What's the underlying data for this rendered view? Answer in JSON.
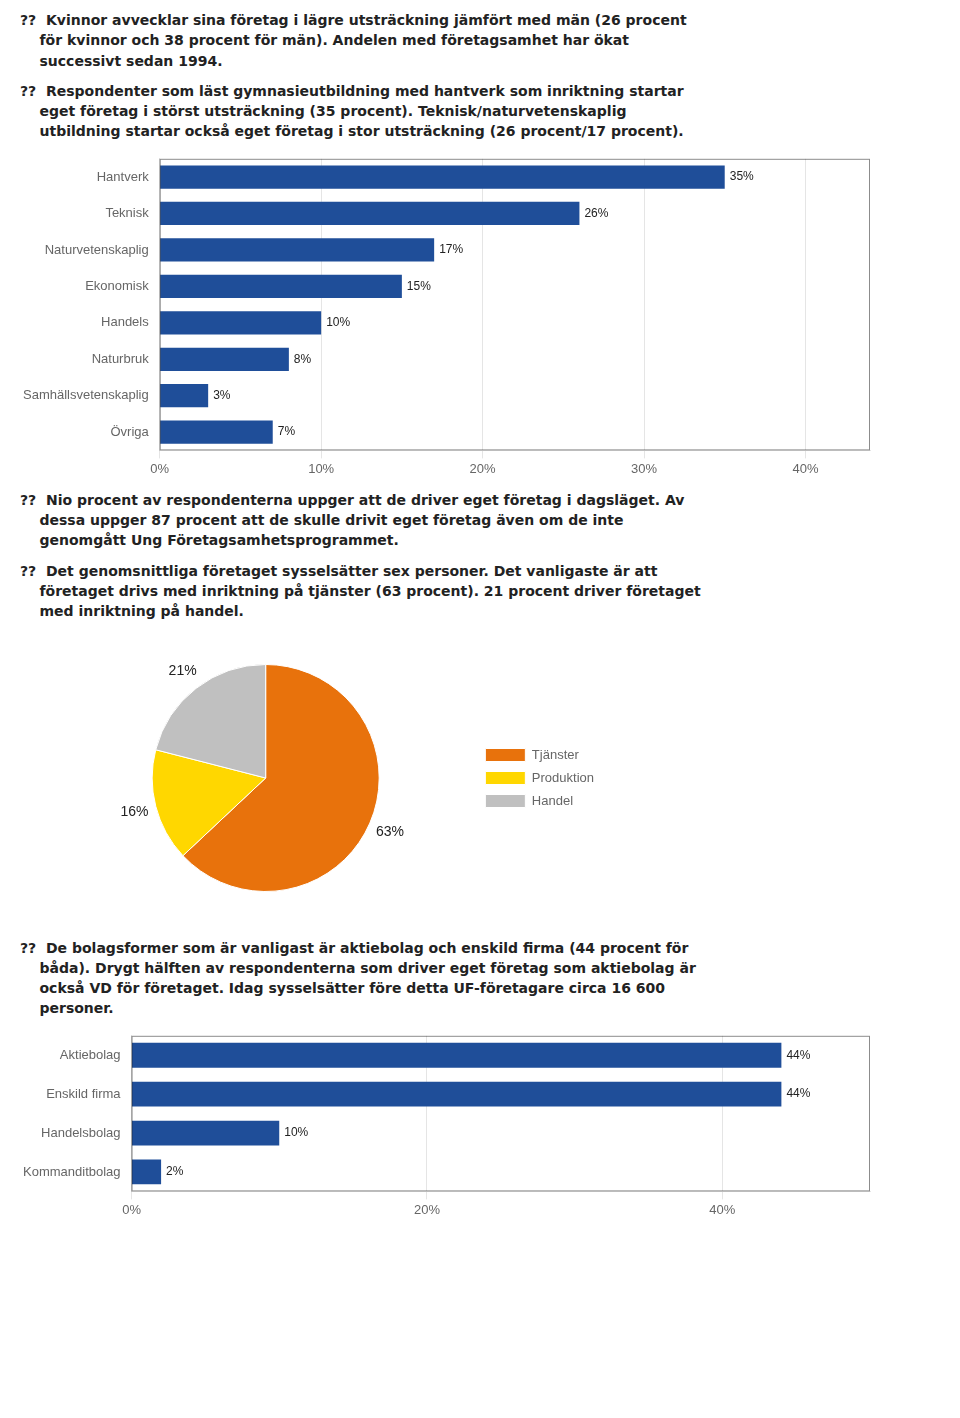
{
  "chart_data": [
    {
      "type": "bar",
      "orientation": "horizontal",
      "annotations": [
        "??  Kvinnor avvecklar sina företag i lägre utsträckning jämfört med män (26 procent\n    för kvinnor och 38 procent för män). Andelen med företagsamhet har ökat\n    successivt sedan 1994.",
        "??  Respondenter som läst gymnasieutbildning med hantverk som inriktning startar\n    eget företag i störst utsträckning (35 procent). Teknisk/naturvetenskaplig\n    utbildning startar också eget företag i stor utsträckning (26 procent/17 procent)."
      ],
      "categories": [
        "Hantverk",
        "Teknisk",
        "Naturvetenskaplig",
        "Ekonomisk",
        "Handels",
        "Naturbruk",
        "Samhällsvetenskaplig",
        "Övriga"
      ],
      "values": [
        0.35,
        0.26,
        0.17,
        0.15,
        0.1,
        0.08,
        0.03,
        0.07
      ],
      "value_labels": [
        "35%",
        "26%",
        "17%",
        "15%",
        "10%",
        "8%",
        "3%",
        "7%"
      ],
      "data_labels": true,
      "color": "#1F4E99",
      "xlim": [
        0,
        0.44
      ],
      "xticks": [
        {
          "value": 0.0,
          "label": "0%"
        },
        {
          "value": 0.1,
          "label": "10%"
        },
        {
          "value": 0.2,
          "label": "20%"
        },
        {
          "value": 0.3,
          "label": "30%"
        },
        {
          "value": 0.4,
          "label": "40%"
        }
      ],
      "grid": true
    },
    {
      "type": "pie",
      "annotations": [
        "??  Nio procent av respondenterna uppger att de driver eget företag i dagsläget. Av\n    dessa uppger 87 procent att de skulle drivit eget företag även om de inte\n    genomgått Ung Företagsamhetsprogrammet.",
        "??  Det genomsnittliga företaget sysselsätter sex personer. Det vanligaste är att\n    företaget drivs med inriktning på tjänster (63 procent). 21 procent driver företaget\n    med inriktning på handel."
      ],
      "categories": [
        "Tjänster",
        "Produktion",
        "Handel"
      ],
      "values": [
        63,
        16,
        21
      ],
      "value_labels": [
        "63%",
        "16%",
        "21%"
      ],
      "data_labels": true,
      "colors": [
        "#E8720C",
        "#FFD700",
        "#C0C0C0"
      ],
      "legend": "right"
    },
    {
      "type": "bar",
      "orientation": "horizontal",
      "annotations": [
        "??  De bolagsformer som är vanligast är aktiebolag och enskild firma (44 procent för\n    båda). Drygt hälften av respondenterna som driver eget företag som aktiebolag är\n    också VD för företaget. Idag sysselsätter före detta UF-företagare circa 16 600\n    personer."
      ],
      "categories": [
        "Aktiebolag",
        "Enskild firma",
        "Handelsbolag",
        "Kommanditbolag"
      ],
      "values": [
        0.44,
        0.44,
        0.1,
        0.02
      ],
      "value_labels": [
        "44%",
        "44%",
        "10%",
        "2%"
      ],
      "data_labels": true,
      "color": "#1F4E99",
      "xlim": [
        0,
        0.5
      ],
      "xticks": [
        {
          "value": 0.0,
          "label": "0%"
        },
        {
          "value": 0.2,
          "label": "20%"
        },
        {
          "value": 0.4,
          "label": "40%"
        }
      ],
      "grid": true
    }
  ]
}
